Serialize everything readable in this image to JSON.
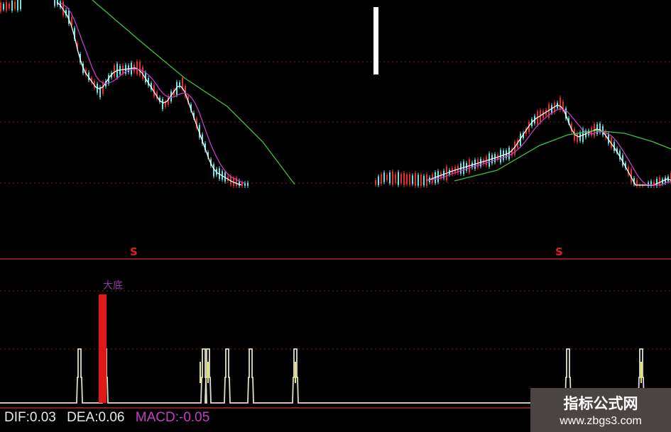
{
  "chart_data": {
    "type": "line",
    "title": "",
    "indicator": {
      "DIF_label": "DIF:0.03",
      "DEA_label": "DEA:0.06",
      "MACD_label": "MACD:-0.05",
      "DIF": 0.03,
      "DEA": 0.06,
      "MACD": -0.05
    },
    "signals": [
      {
        "label": "S"
      },
      {
        "label": "S"
      }
    ],
    "tag_label": "大底",
    "colors": {
      "background": "#000000",
      "up": "#e03030",
      "down": "#70e0e0",
      "ma_short": "#ffffff",
      "ma_mid": "#c040c0",
      "ma_long": "#40c040",
      "signal_bar": "#e01818",
      "pulse": "#e0e0c8",
      "pulse_accent": "#e8e860",
      "grid": "#802020"
    },
    "grid": true
  },
  "watermark": {
    "title": "指标公式网",
    "url": "www.zbgs3.com"
  }
}
